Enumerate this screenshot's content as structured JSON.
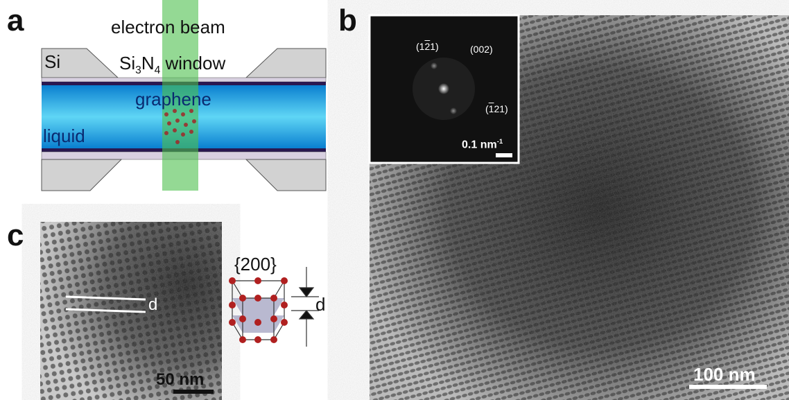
{
  "panels": {
    "a": {
      "label": "a",
      "beam": "electron beam",
      "si": "Si",
      "window": {
        "base": "Si",
        "sub1": "3",
        "mid": "N",
        "sub2": "4",
        "rest": " window"
      },
      "graphene": "graphene",
      "liquid": "liquid"
    },
    "b": {
      "label": "b",
      "fft": {
        "spot1": {
          "open": "(1",
          "bar": "2",
          "close": "1)"
        },
        "spot2": "(002)",
        "spot3": {
          "open": "(",
          "bar": "1",
          "close": "21)"
        },
        "scale": {
          "text": "0.1 nm",
          "sup": "-1"
        }
      },
      "scale": "100 nm"
    },
    "c": {
      "label": "c",
      "d_image": "d",
      "family": "{200}",
      "d_lattice": "d",
      "scale": "50 nm"
    }
  }
}
